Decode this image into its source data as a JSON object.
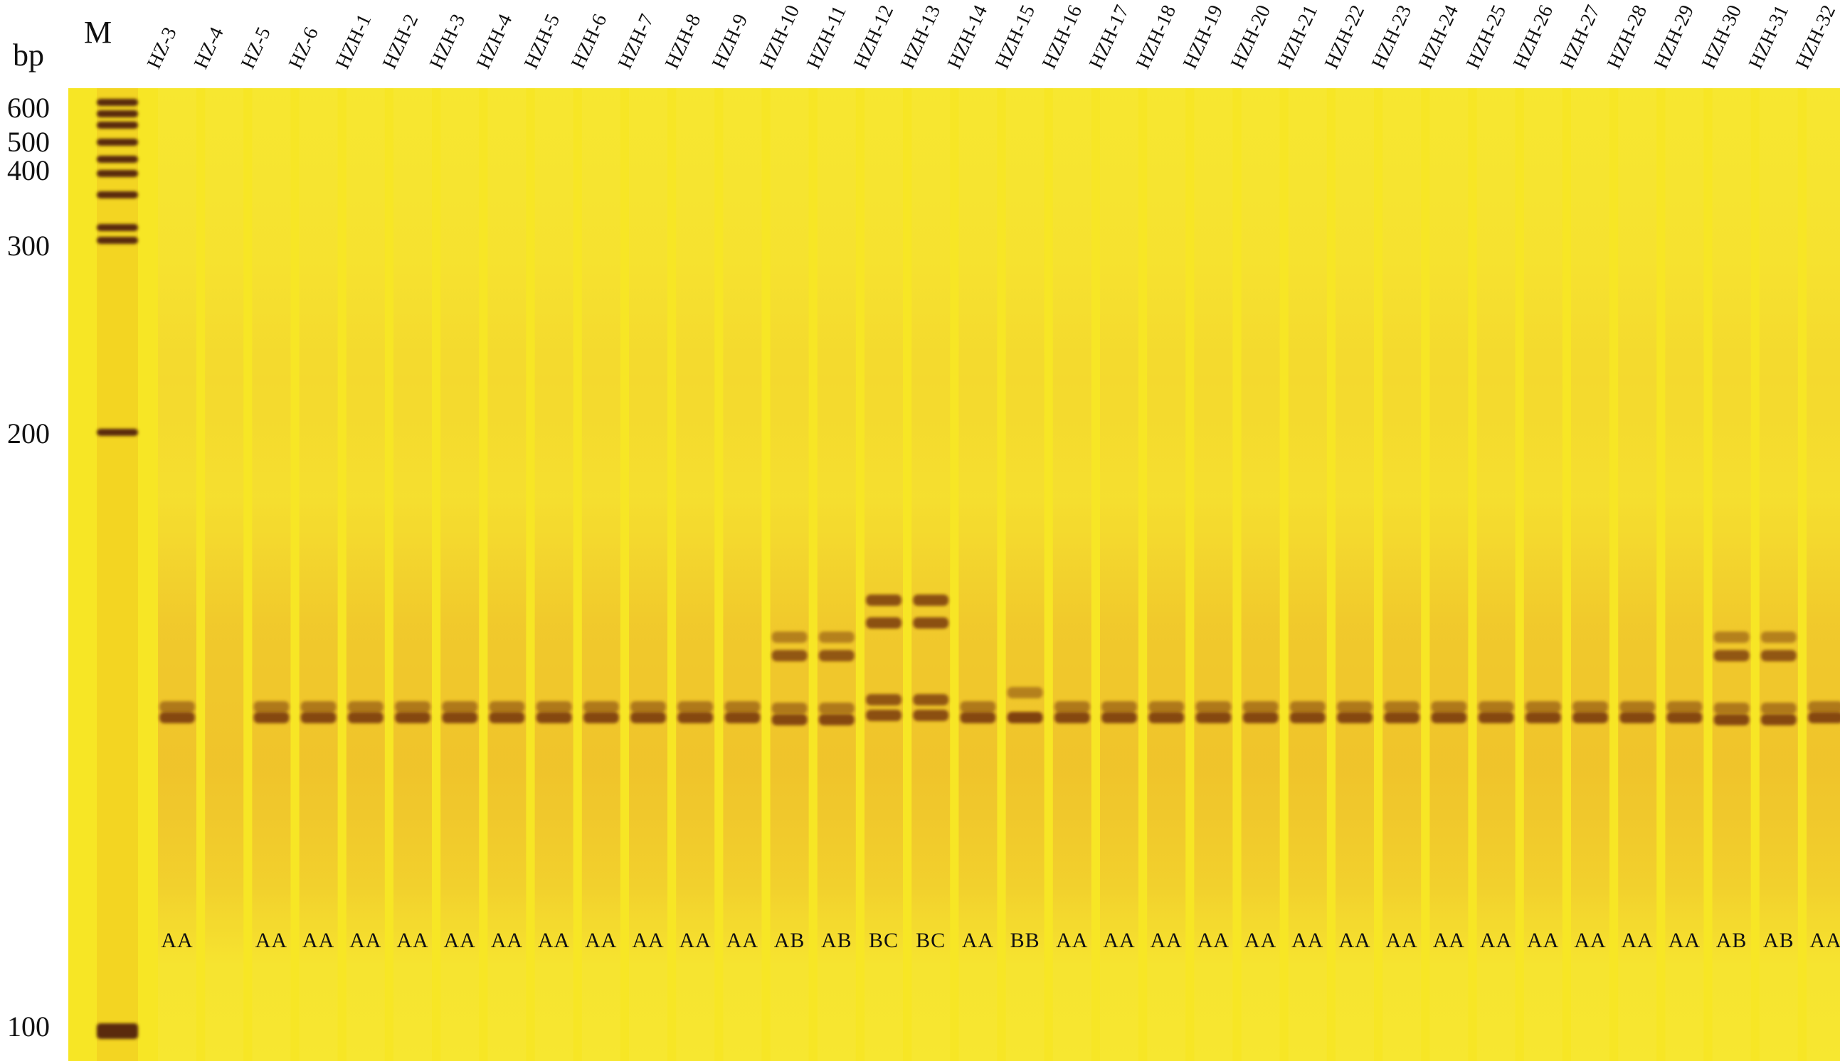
{
  "bp_unit": "bp",
  "marker_label": "M",
  "marker_sizes": [
    "600",
    "500",
    "400",
    "300",
    "200",
    "100"
  ],
  "lanes": [
    {
      "name": "HZ-3",
      "genotype": "AA"
    },
    {
      "name": "HZ-4",
      "genotype": ""
    },
    {
      "name": "HZ-5",
      "genotype": "AA"
    },
    {
      "name": "HZ-6",
      "genotype": "AA"
    },
    {
      "name": "HZH-1",
      "genotype": "AA"
    },
    {
      "name": "HZH-2",
      "genotype": "AA"
    },
    {
      "name": "HZH-3",
      "genotype": "AA"
    },
    {
      "name": "HZH-4",
      "genotype": "AA"
    },
    {
      "name": "HZH-5",
      "genotype": "AA"
    },
    {
      "name": "HZH-6",
      "genotype": "AA"
    },
    {
      "name": "HZH-7",
      "genotype": "AA"
    },
    {
      "name": "HZH-8",
      "genotype": "AA"
    },
    {
      "name": "HZH-9",
      "genotype": "AA"
    },
    {
      "name": "HZH-10",
      "genotype": "AB"
    },
    {
      "name": "HZH-11",
      "genotype": "AB"
    },
    {
      "name": "HZH-12",
      "genotype": "BC"
    },
    {
      "name": "HZH-13",
      "genotype": "BC"
    },
    {
      "name": "HZH-14",
      "genotype": "AA"
    },
    {
      "name": "HZH-15",
      "genotype": "BB"
    },
    {
      "name": "HZH-16",
      "genotype": "AA"
    },
    {
      "name": "HZH-17",
      "genotype": "AA"
    },
    {
      "name": "HZH-18",
      "genotype": "AA"
    },
    {
      "name": "HZH-19",
      "genotype": "AA"
    },
    {
      "name": "HZH-20",
      "genotype": "AA"
    },
    {
      "name": "HZH-21",
      "genotype": "AA"
    },
    {
      "name": "HZH-22",
      "genotype": "AA"
    },
    {
      "name": "HZH-23",
      "genotype": "AA"
    },
    {
      "name": "HZH-24",
      "genotype": "AA"
    },
    {
      "name": "HZH-25",
      "genotype": "AA"
    },
    {
      "name": "HZH-26",
      "genotype": "AA"
    },
    {
      "name": "HZH-27",
      "genotype": "AA"
    },
    {
      "name": "HZH-28",
      "genotype": "AA"
    },
    {
      "name": "HZH-29",
      "genotype": "AA"
    },
    {
      "name": "HZH-30",
      "genotype": "AB"
    },
    {
      "name": "HZH-31",
      "genotype": "AB"
    },
    {
      "name": "HZH-32",
      "genotype": "AA"
    }
  ],
  "colors": {
    "gel_background": "#f7e625",
    "smear": "#e9a21c",
    "band": "#7a3b10",
    "marker_band": "#5a2a0c"
  }
}
